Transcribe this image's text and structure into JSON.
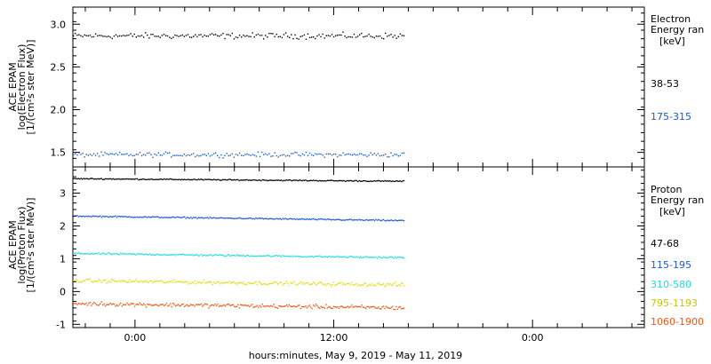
{
  "xaxis": {
    "label": "hours:minutes, May  9, 2019 - May 11, 2019",
    "range_hours": [
      -7.5,
      61.5
    ],
    "tick_labels": [
      {
        "hour": 0,
        "label": "0:00"
      },
      {
        "hour": 24,
        "label": "12:00"
      },
      {
        "hour": 48,
        "label": "0:00"
      }
    ],
    "major_tick_step_hours": 3,
    "data_end_hour": 32.4
  },
  "chart_data": [
    {
      "type": "scatter",
      "panel": "electron",
      "ylabel_lines": [
        "ACE EPAM",
        "log(Electron Flux)",
        "[1/(cm²s ster MeV)]"
      ],
      "ylim": [
        1.33,
        3.2
      ],
      "yticks": [
        1.5,
        2.0,
        2.5,
        3.0
      ],
      "ytick_labels": [
        "1.5",
        "2.0",
        "2.5",
        "3.0"
      ],
      "legend_title": [
        "Electron",
        "Energy ran"
      ],
      "legend_unit": "[keV]",
      "series": [
        {
          "name": "38-53",
          "color": "#000000",
          "mean": 2.87,
          "spread": 0.05,
          "in_legend_color": "#000000"
        },
        {
          "name": "175-315",
          "color": "#1a5bd1",
          "mean": 1.48,
          "spread": 0.04,
          "in_legend_color": "#1a5bd1"
        }
      ]
    },
    {
      "type": "scatter",
      "panel": "proton",
      "ylabel_lines": [
        "ACE EPAM",
        "log(Proton Flux)",
        "[1/(cm²s ster MeV)]"
      ],
      "ylim": [
        -1.1,
        3.8
      ],
      "yticks": [
        -1,
        0,
        1,
        2,
        3
      ],
      "ytick_labels": [
        "-1",
        "0",
        "1",
        "2",
        "3"
      ],
      "legend_title": [
        "Proton",
        "Energy ran"
      ],
      "legend_unit": "[keV]",
      "series": [
        {
          "name": "47-68",
          "color": "#000000",
          "start": 3.46,
          "end": 3.38,
          "spread": 0.025
        },
        {
          "name": "115-195",
          "color": "#1a5bd1",
          "start": 2.32,
          "end": 2.18,
          "spread": 0.03
        },
        {
          "name": "310-580",
          "color": "#22dddd",
          "start": 1.18,
          "end": 1.05,
          "spread": 0.04
        },
        {
          "name": "795-1193",
          "color": "#dede10",
          "start": 0.35,
          "end": 0.22,
          "spread": 0.08
        },
        {
          "name": "1060-1900",
          "color": "#ee5511",
          "start": -0.35,
          "end": -0.48,
          "spread": 0.09
        }
      ]
    }
  ]
}
